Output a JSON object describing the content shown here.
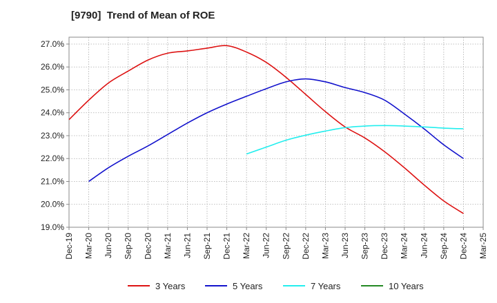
{
  "chart_data": {
    "type": "line",
    "title": "[9790]  Trend of Mean of ROE",
    "x_categories": [
      "Dec-19",
      "Mar-20",
      "Jun-20",
      "Sep-20",
      "Dec-20",
      "Mar-21",
      "Jun-21",
      "Sep-21",
      "Dec-21",
      "Mar-22",
      "Jun-22",
      "Sep-22",
      "Dec-22",
      "Mar-23",
      "Jun-23",
      "Sep-23",
      "Dec-23",
      "Mar-24",
      "Jun-24",
      "Sep-24",
      "Dec-24",
      "Mar-25"
    ],
    "y_ticks": [
      "19.0%",
      "20.0%",
      "21.0%",
      "22.0%",
      "23.0%",
      "24.0%",
      "25.0%",
      "26.0%",
      "27.0%"
    ],
    "ylim": [
      19.0,
      27.3
    ],
    "grid": true,
    "legend_position": "bottom",
    "series": [
      {
        "name": "3 Years",
        "color": "#dd1111",
        "start_index": 0,
        "values": [
          23.7,
          24.55,
          25.3,
          25.82,
          26.3,
          26.6,
          26.7,
          26.82,
          26.93,
          26.65,
          26.2,
          25.55,
          24.8,
          24.05,
          23.38,
          22.9,
          22.3,
          21.6,
          20.85,
          20.15,
          19.6
        ]
      },
      {
        "name": "5 Years",
        "color": "#1111cc",
        "start_index": 1,
        "values": [
          21.0,
          21.6,
          22.1,
          22.55,
          23.05,
          23.55,
          24.0,
          24.38,
          24.72,
          25.05,
          25.35,
          25.48,
          25.35,
          25.1,
          24.88,
          24.55,
          23.95,
          23.3,
          22.6,
          22.0
        ]
      },
      {
        "name": "7 Years",
        "color": "#22eeee",
        "start_index": 9,
        "values": [
          22.2,
          22.5,
          22.8,
          23.02,
          23.2,
          23.35,
          23.42,
          23.44,
          23.42,
          23.38,
          23.33,
          23.3
        ]
      },
      {
        "name": "10 Years",
        "color": "#228822",
        "start_index": 0,
        "values": []
      }
    ]
  }
}
